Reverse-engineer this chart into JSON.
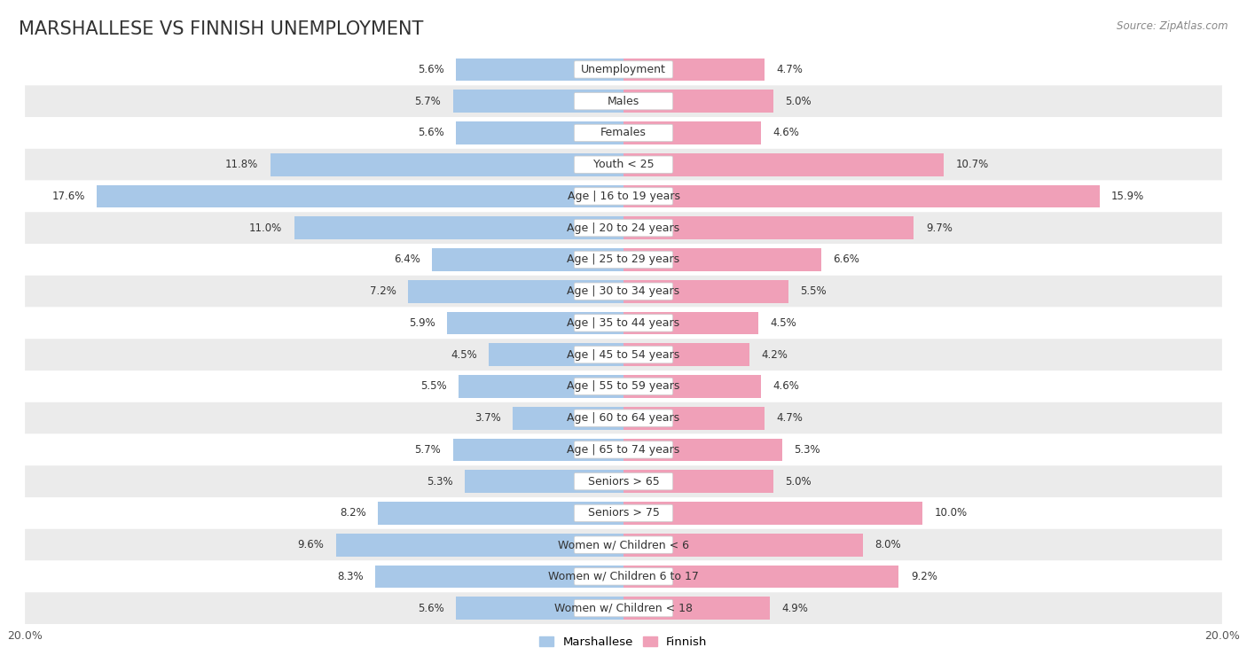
{
  "title": "MARSHALLESE VS FINNISH UNEMPLOYMENT",
  "source": "Source: ZipAtlas.com",
  "categories": [
    "Unemployment",
    "Males",
    "Females",
    "Youth < 25",
    "Age | 16 to 19 years",
    "Age | 20 to 24 years",
    "Age | 25 to 29 years",
    "Age | 30 to 34 years",
    "Age | 35 to 44 years",
    "Age | 45 to 54 years",
    "Age | 55 to 59 years",
    "Age | 60 to 64 years",
    "Age | 65 to 74 years",
    "Seniors > 65",
    "Seniors > 75",
    "Women w/ Children < 6",
    "Women w/ Children 6 to 17",
    "Women w/ Children < 18"
  ],
  "marshallese": [
    5.6,
    5.7,
    5.6,
    11.8,
    17.6,
    11.0,
    6.4,
    7.2,
    5.9,
    4.5,
    5.5,
    3.7,
    5.7,
    5.3,
    8.2,
    9.6,
    8.3,
    5.6
  ],
  "finnish": [
    4.7,
    5.0,
    4.6,
    10.7,
    15.9,
    9.7,
    6.6,
    5.5,
    4.5,
    4.2,
    4.6,
    4.7,
    5.3,
    5.0,
    10.0,
    8.0,
    9.2,
    4.9
  ],
  "marshallese_color": "#a8c8e8",
  "finnish_color": "#f0a0b8",
  "axis_limit": 20.0,
  "background_color": "#ffffff",
  "row_bg_even": "#ffffff",
  "row_bg_odd": "#ebebeb",
  "title_fontsize": 15,
  "label_fontsize": 9,
  "value_fontsize": 8.5
}
